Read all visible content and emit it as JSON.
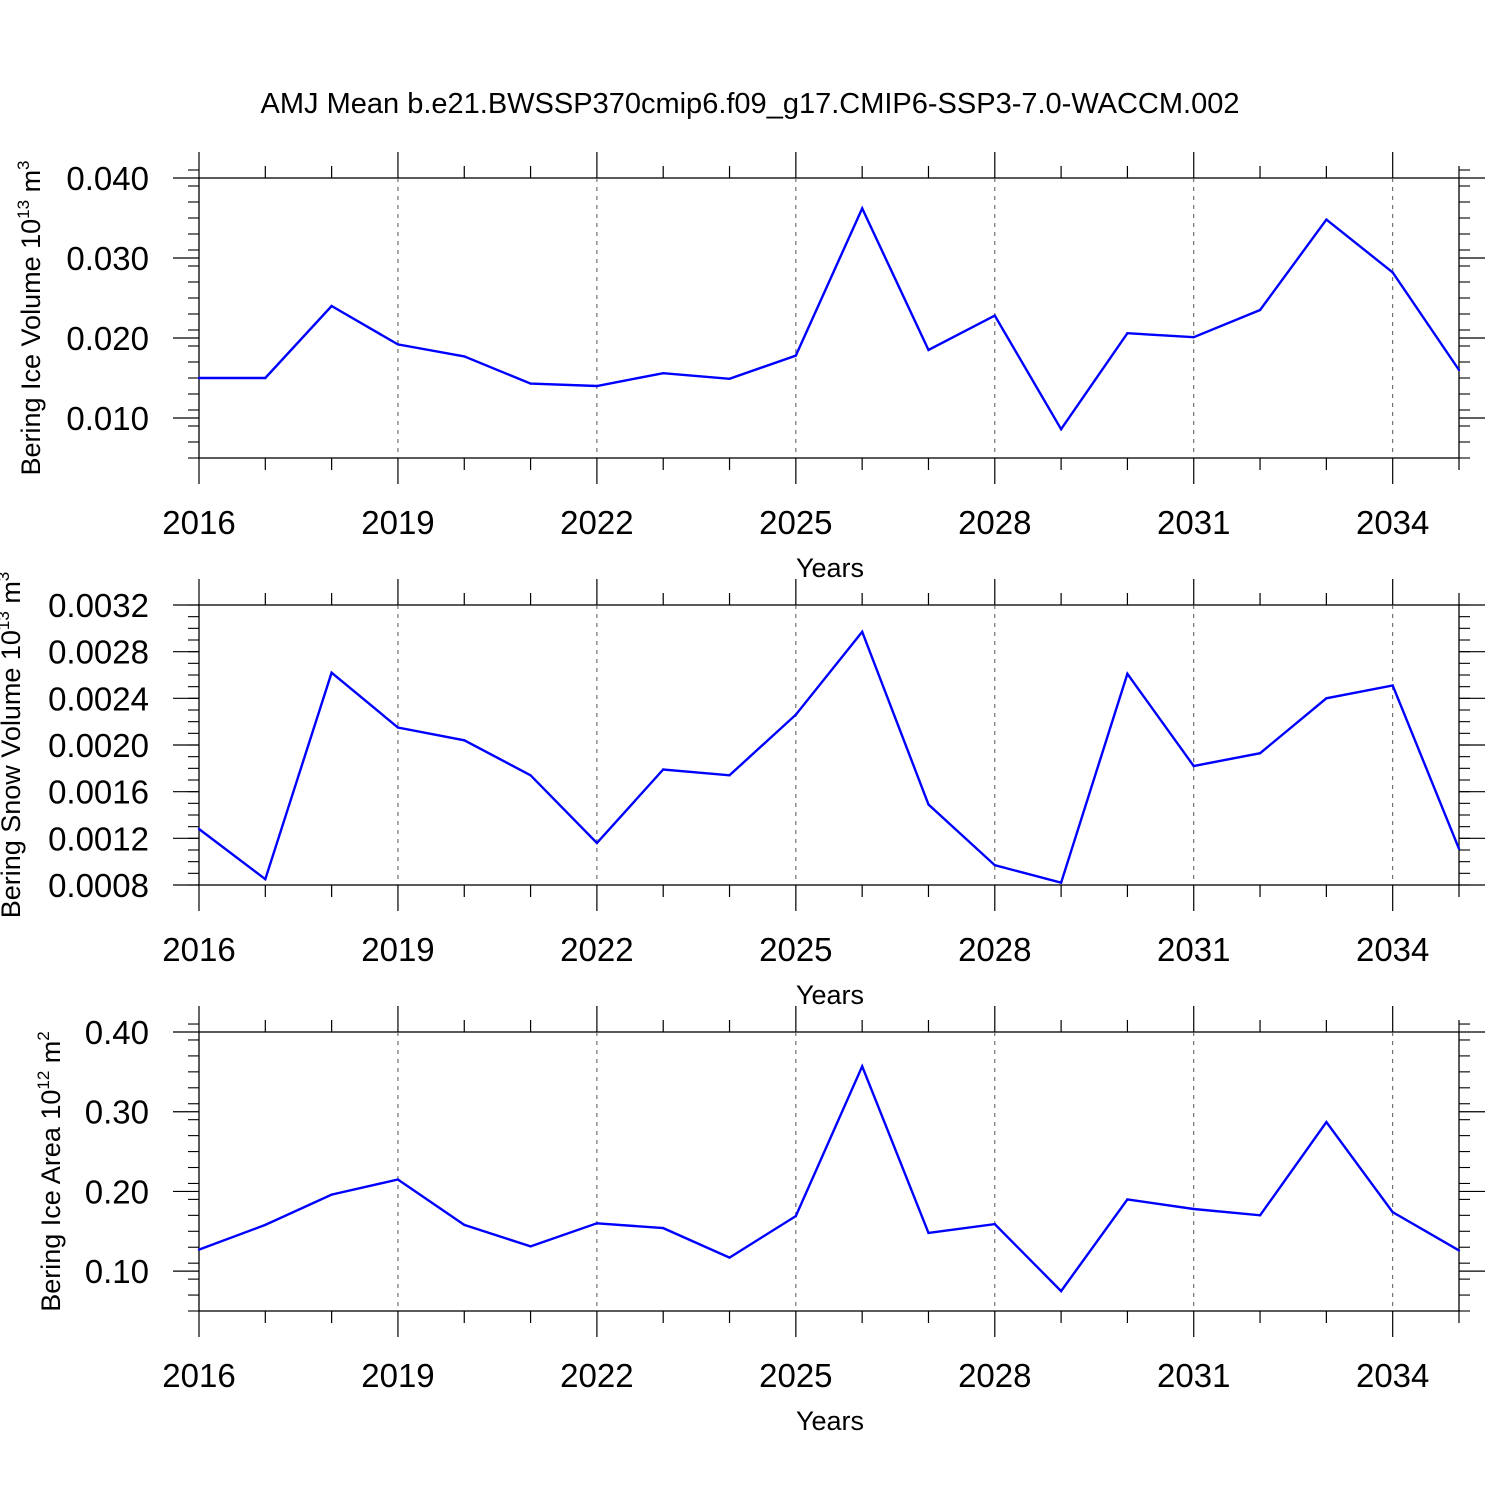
{
  "title": "AMJ Mean b.e21.BWSSP370cmip6.f09_g17.CMIP6-SSP3-7.0-WACCM.002",
  "colors": {
    "line": "#0000ff",
    "axis": "#000000",
    "grid": "#555555"
  },
  "chart_data": [
    {
      "type": "line",
      "xlabel": "Years",
      "ylabel_main": "Bering Ice Volume 10",
      "ylabel_exp": "13",
      "ylabel_unit": " m",
      "ylabel_unit_exp": "3",
      "x": [
        2016,
        2017,
        2018,
        2019,
        2020,
        2021,
        2022,
        2023,
        2024,
        2025,
        2026,
        2027,
        2028,
        2029,
        2030,
        2031,
        2032,
        2033,
        2034,
        2035
      ],
      "values": [
        0.015,
        0.015,
        0.024,
        0.0192,
        0.0177,
        0.0143,
        0.014,
        0.0156,
        0.0149,
        0.0178,
        0.0362,
        0.0185,
        0.0228,
        0.0086,
        0.0206,
        0.0201,
        0.0235,
        0.0348,
        0.0282,
        0.016
      ],
      "xlim": [
        2016,
        2035
      ],
      "ylim": [
        0.005,
        0.04
      ],
      "yticks": [
        0.01,
        0.02,
        0.03,
        0.04
      ],
      "ytick_labels": [
        "0.010",
        "0.020",
        "0.030",
        "0.040"
      ],
      "yminor_step": 0.002,
      "xticks": [
        2016,
        2019,
        2022,
        2025,
        2028,
        2031,
        2034
      ],
      "xtick_labels": [
        "2016",
        "2019",
        "2022",
        "2025",
        "2028",
        "2031",
        "2034"
      ],
      "grid": "x-dashed"
    },
    {
      "type": "line",
      "xlabel": "Years",
      "ylabel_main": "Bering Snow Volume 10",
      "ylabel_exp": "13",
      "ylabel_unit": " m",
      "ylabel_unit_exp": "3",
      "x": [
        2016,
        2017,
        2018,
        2019,
        2020,
        2021,
        2022,
        2023,
        2024,
        2025,
        2026,
        2027,
        2028,
        2029,
        2030,
        2031,
        2032,
        2033,
        2034,
        2035
      ],
      "values": [
        0.00128,
        0.00085,
        0.00262,
        0.00215,
        0.00204,
        0.00174,
        0.00116,
        0.00179,
        0.00174,
        0.00226,
        0.00297,
        0.00149,
        0.00097,
        0.00082,
        0.00261,
        0.00182,
        0.00193,
        0.0024,
        0.00251,
        0.00111
      ],
      "xlim": [
        2016,
        2035
      ],
      "ylim": [
        0.0008,
        0.0032
      ],
      "yticks": [
        0.0008,
        0.0012,
        0.0016,
        0.002,
        0.0024,
        0.0028,
        0.0032
      ],
      "ytick_labels": [
        "0.0008",
        "0.0012",
        "0.0016",
        "0.0020",
        "0.0024",
        "0.0028",
        "0.0032"
      ],
      "yminor_step": 0.0001,
      "xticks": [
        2016,
        2019,
        2022,
        2025,
        2028,
        2031,
        2034
      ],
      "xtick_labels": [
        "2016",
        "2019",
        "2022",
        "2025",
        "2028",
        "2031",
        "2034"
      ],
      "grid": "x-dashed"
    },
    {
      "type": "line",
      "xlabel": "Years",
      "ylabel_main": "Bering Ice Area 10",
      "ylabel_exp": "12",
      "ylabel_unit": " m",
      "ylabel_unit_exp": "2",
      "x": [
        2016,
        2017,
        2018,
        2019,
        2020,
        2021,
        2022,
        2023,
        2024,
        2025,
        2026,
        2027,
        2028,
        2029,
        2030,
        2031,
        2032,
        2033,
        2034,
        2035
      ],
      "values": [
        0.127,
        0.158,
        0.196,
        0.215,
        0.158,
        0.131,
        0.16,
        0.154,
        0.117,
        0.169,
        0.357,
        0.148,
        0.159,
        0.075,
        0.19,
        0.178,
        0.17,
        0.287,
        0.174,
        0.126
      ],
      "xlim": [
        2016,
        2035
      ],
      "ylim": [
        0.05,
        0.4
      ],
      "yticks": [
        0.1,
        0.2,
        0.3,
        0.4
      ],
      "ytick_labels": [
        "0.10",
        "0.20",
        "0.30",
        "0.40"
      ],
      "yminor_step": 0.02,
      "xticks": [
        2016,
        2019,
        2022,
        2025,
        2028,
        2031,
        2034
      ],
      "xtick_labels": [
        "2016",
        "2019",
        "2022",
        "2025",
        "2028",
        "2031",
        "2034"
      ],
      "grid": "x-dashed"
    }
  ]
}
